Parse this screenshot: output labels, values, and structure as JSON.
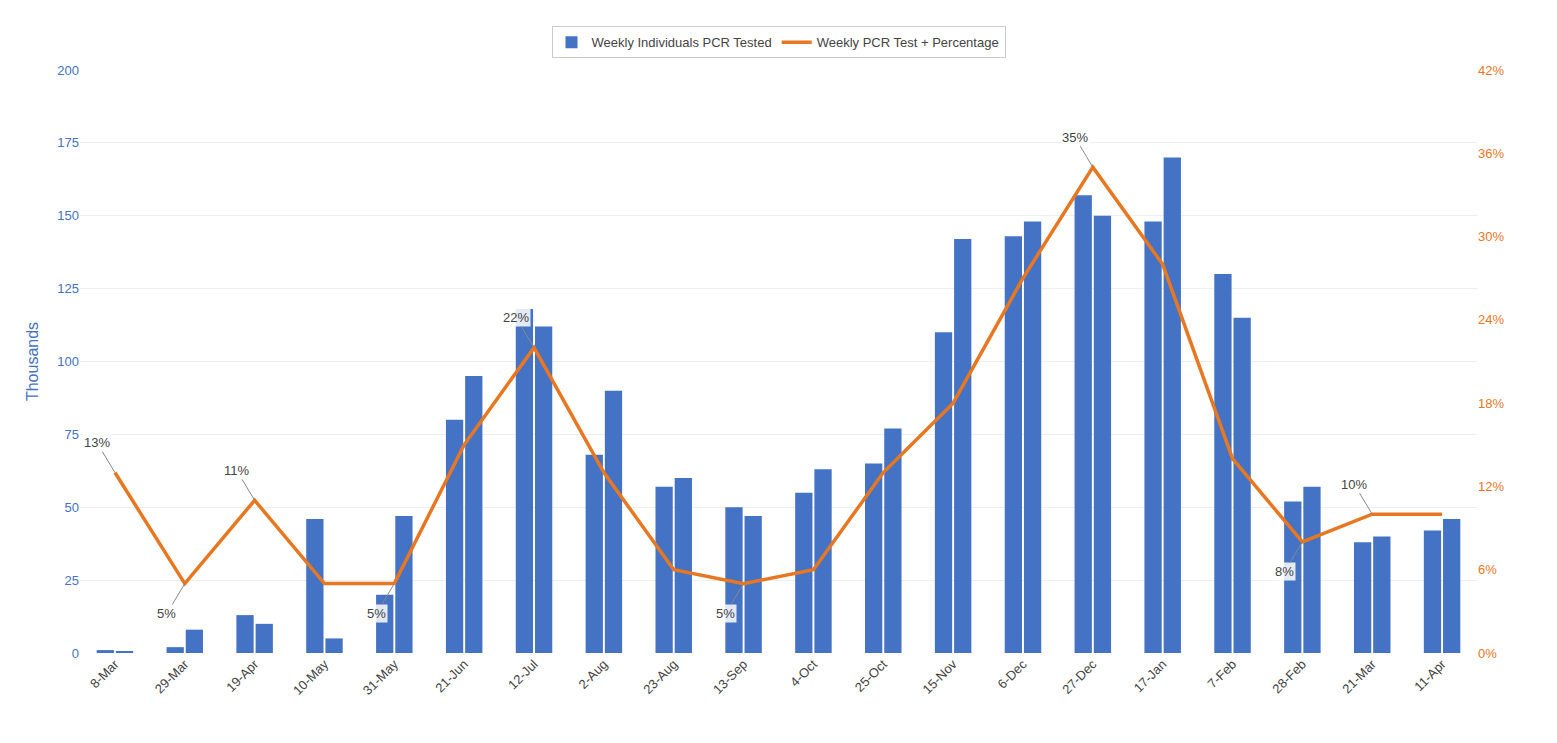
{
  "chart_data": {
    "type": "bar",
    "ylabel": "Thousands",
    "categories": [
      "8-Mar",
      "29-Mar",
      "19-Apr",
      "10-May",
      "31-May",
      "21-Jun",
      "12-Jul",
      "2-Aug",
      "23-Aug",
      "13-Sep",
      "4-Oct",
      "25-Oct",
      "15-Nov",
      "6-Dec",
      "27-Dec",
      "17-Jan",
      "7-Feb",
      "28-Feb",
      "21-Mar",
      "11-Apr"
    ],
    "series": [
      {
        "name": "Weekly Individuals PCR Tested",
        "color": "#4472C4",
        "values": [
          1,
          2,
          13,
          46,
          20,
          80,
          118,
          68,
          57,
          50,
          55,
          65,
          110,
          143,
          157,
          148,
          130,
          52,
          38,
          42
        ]
      },
      {
        "name": "Weekly Individuals PCR Tested",
        "color": "#4472C4",
        "values": [
          0.5,
          8,
          10,
          5,
          47,
          95,
          112,
          90,
          60,
          47,
          63,
          77,
          142,
          148,
          150,
          170,
          115,
          57,
          40,
          46
        ]
      },
      {
        "name": "Weekly PCR Test + Percentage",
        "type": "line",
        "axis": "y2",
        "color": "#E87722",
        "values": [
          13,
          5,
          11,
          5,
          5,
          15,
          22,
          13,
          6,
          5,
          6,
          13,
          18,
          27,
          35,
          28,
          14,
          8,
          10,
          10
        ]
      }
    ],
    "ylim": [
      0,
      200
    ],
    "yticks": [
      0,
      25,
      50,
      75,
      100,
      125,
      150,
      175,
      200
    ],
    "y2lim": [
      0,
      42
    ],
    "y2ticks": [
      {
        "value": 0,
        "label": "0%"
      },
      {
        "value": 6,
        "label": "6%"
      },
      {
        "value": 12,
        "label": "12%"
      },
      {
        "value": 18,
        "label": "18%"
      },
      {
        "value": 24,
        "label": "24%"
      },
      {
        "value": 30,
        "label": "30%"
      },
      {
        "value": 36,
        "label": "36%"
      },
      {
        "value": 42,
        "label": "42%"
      }
    ],
    "grid": true,
    "legend": "top",
    "annotations": [
      {
        "text": "13%",
        "x": "8-Mar",
        "y": 13
      },
      {
        "text": "5%",
        "x": "29-Mar",
        "y": 5
      },
      {
        "text": "11%",
        "x": "19-Apr",
        "y": 11
      },
      {
        "text": "5%",
        "x": "31-May",
        "y": 5
      },
      {
        "text": "22%",
        "x": "12-Jul",
        "y": 22
      },
      {
        "text": "5%",
        "x": "13-Sep",
        "y": 5
      },
      {
        "text": "35%",
        "x": "27-Dec",
        "y": 35
      },
      {
        "text": "8%",
        "x": "28-Feb",
        "y": 8
      },
      {
        "text": "10%",
        "x": "21-Mar",
        "y": 10
      }
    ]
  }
}
